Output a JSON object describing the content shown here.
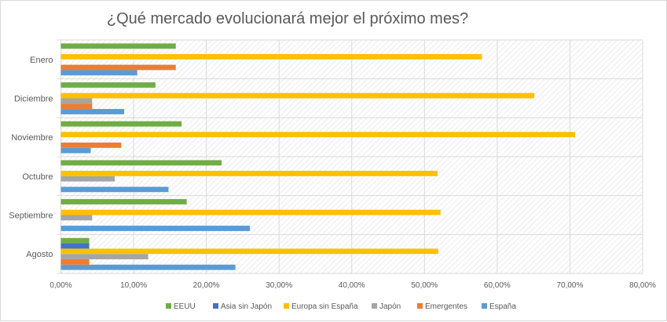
{
  "chart_data": {
    "type": "bar",
    "orientation": "horizontal",
    "title": "¿Qué mercado evolucionará mejor el próximo mes?",
    "categories": [
      "Agosto",
      "Septiembre",
      "Octubre",
      "Noviembre",
      "Diciembre",
      "Enero"
    ],
    "xlim": [
      0,
      80
    ],
    "x_ticks": [
      "0,00%",
      "10,00%",
      "20,00%",
      "30,00%",
      "40,00%",
      "50,00%",
      "60,00%",
      "70,00%",
      "80,00%"
    ],
    "grid": true,
    "legend_position": "bottom",
    "series": [
      {
        "name": "España",
        "color": "#5b9bd5",
        "values": [
          24.0,
          26.0,
          14.8,
          4.1,
          8.7,
          10.5
        ]
      },
      {
        "name": "Emergentes",
        "color": "#ed7d31",
        "values": [
          3.9,
          0,
          0,
          8.3,
          4.3,
          15.8
        ]
      },
      {
        "name": "Japón",
        "color": "#a5a5a5",
        "values": [
          12.0,
          4.3,
          7.4,
          0,
          4.3,
          0
        ]
      },
      {
        "name": "Europa sin España",
        "color": "#ffc000",
        "values": [
          51.9,
          52.2,
          51.8,
          70.7,
          65.1,
          57.9
        ]
      },
      {
        "name": "Asia sin Japón",
        "color": "#4472c4",
        "values": [
          3.9,
          0,
          0,
          0,
          0,
          0
        ]
      },
      {
        "name": "EEUU",
        "color": "#70ad47",
        "values": [
          3.9,
          17.3,
          22.1,
          16.6,
          13.0,
          15.8
        ]
      }
    ],
    "legend_order": [
      "EEUU",
      "Asia sin Japón",
      "Europa sin España",
      "Japón",
      "Emergentes",
      "España"
    ]
  }
}
